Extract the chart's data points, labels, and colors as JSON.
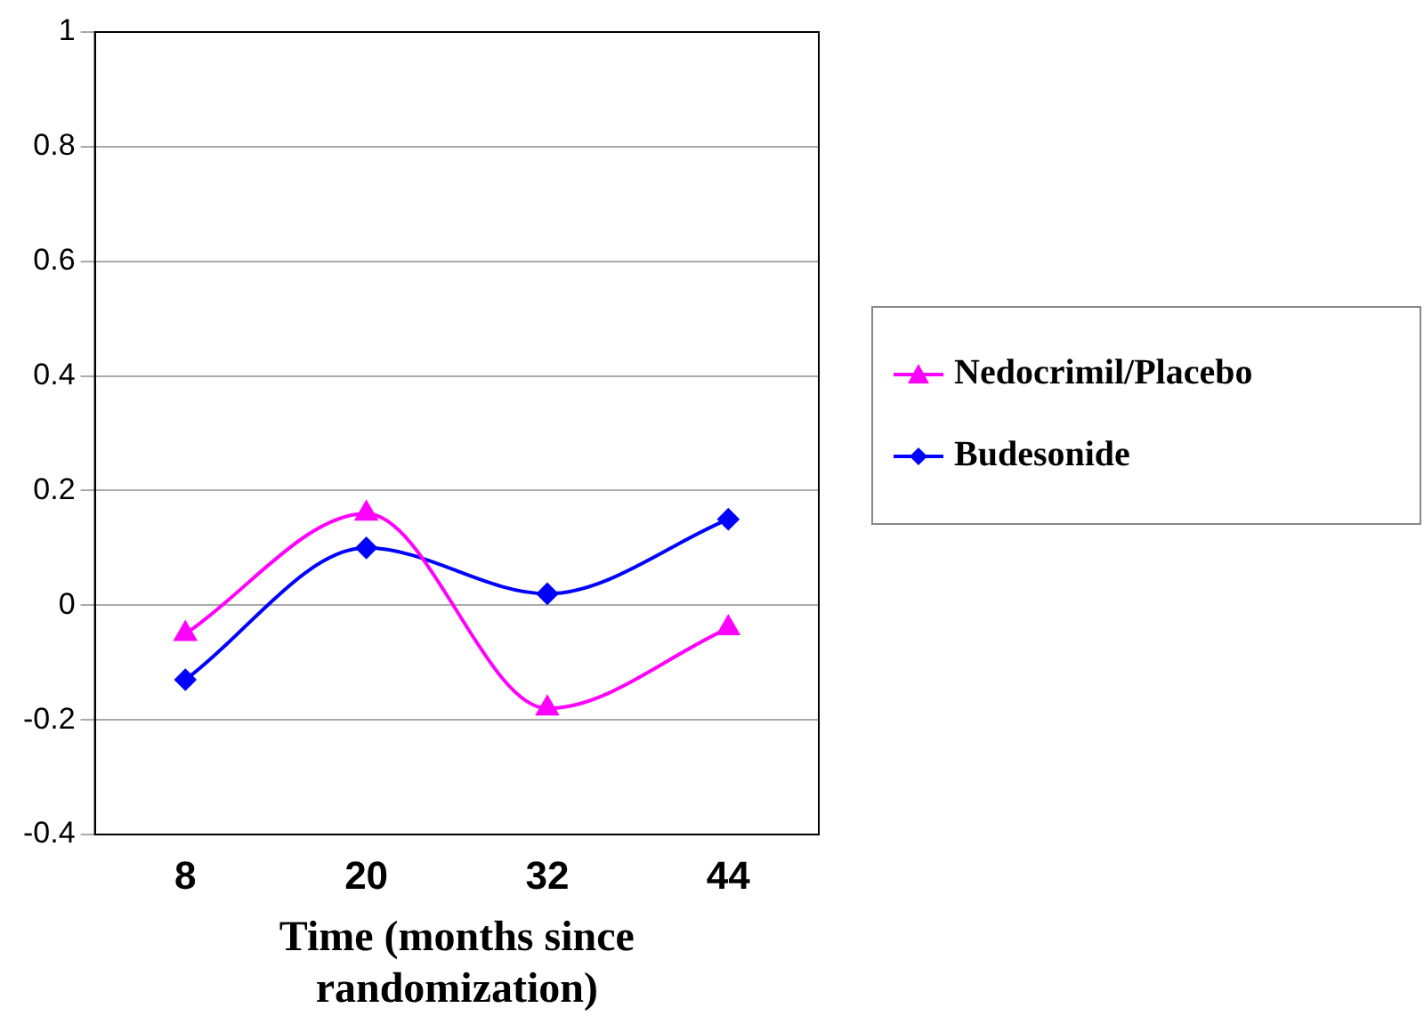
{
  "chart_data": {
    "type": "line",
    "xlabel": "Time (months since randomization)",
    "categories": [
      "8",
      "20",
      "32",
      "44"
    ],
    "series": [
      {
        "name": "Nedocrimil/Placebo",
        "color": "#ff00ff",
        "marker": "triangle",
        "values": [
          -0.05,
          0.16,
          -0.18,
          -0.04
        ]
      },
      {
        "name": "Budesonide",
        "color": "#0000ff",
        "marker": "diamond",
        "values": [
          -0.13,
          0.1,
          0.02,
          0.15
        ]
      }
    ],
    "ylim": [
      -0.4,
      1
    ],
    "yticks": [
      -0.4,
      -0.2,
      0,
      0.2,
      0.4,
      0.6,
      0.8,
      1
    ],
    "grid": "y",
    "legend": "right"
  }
}
